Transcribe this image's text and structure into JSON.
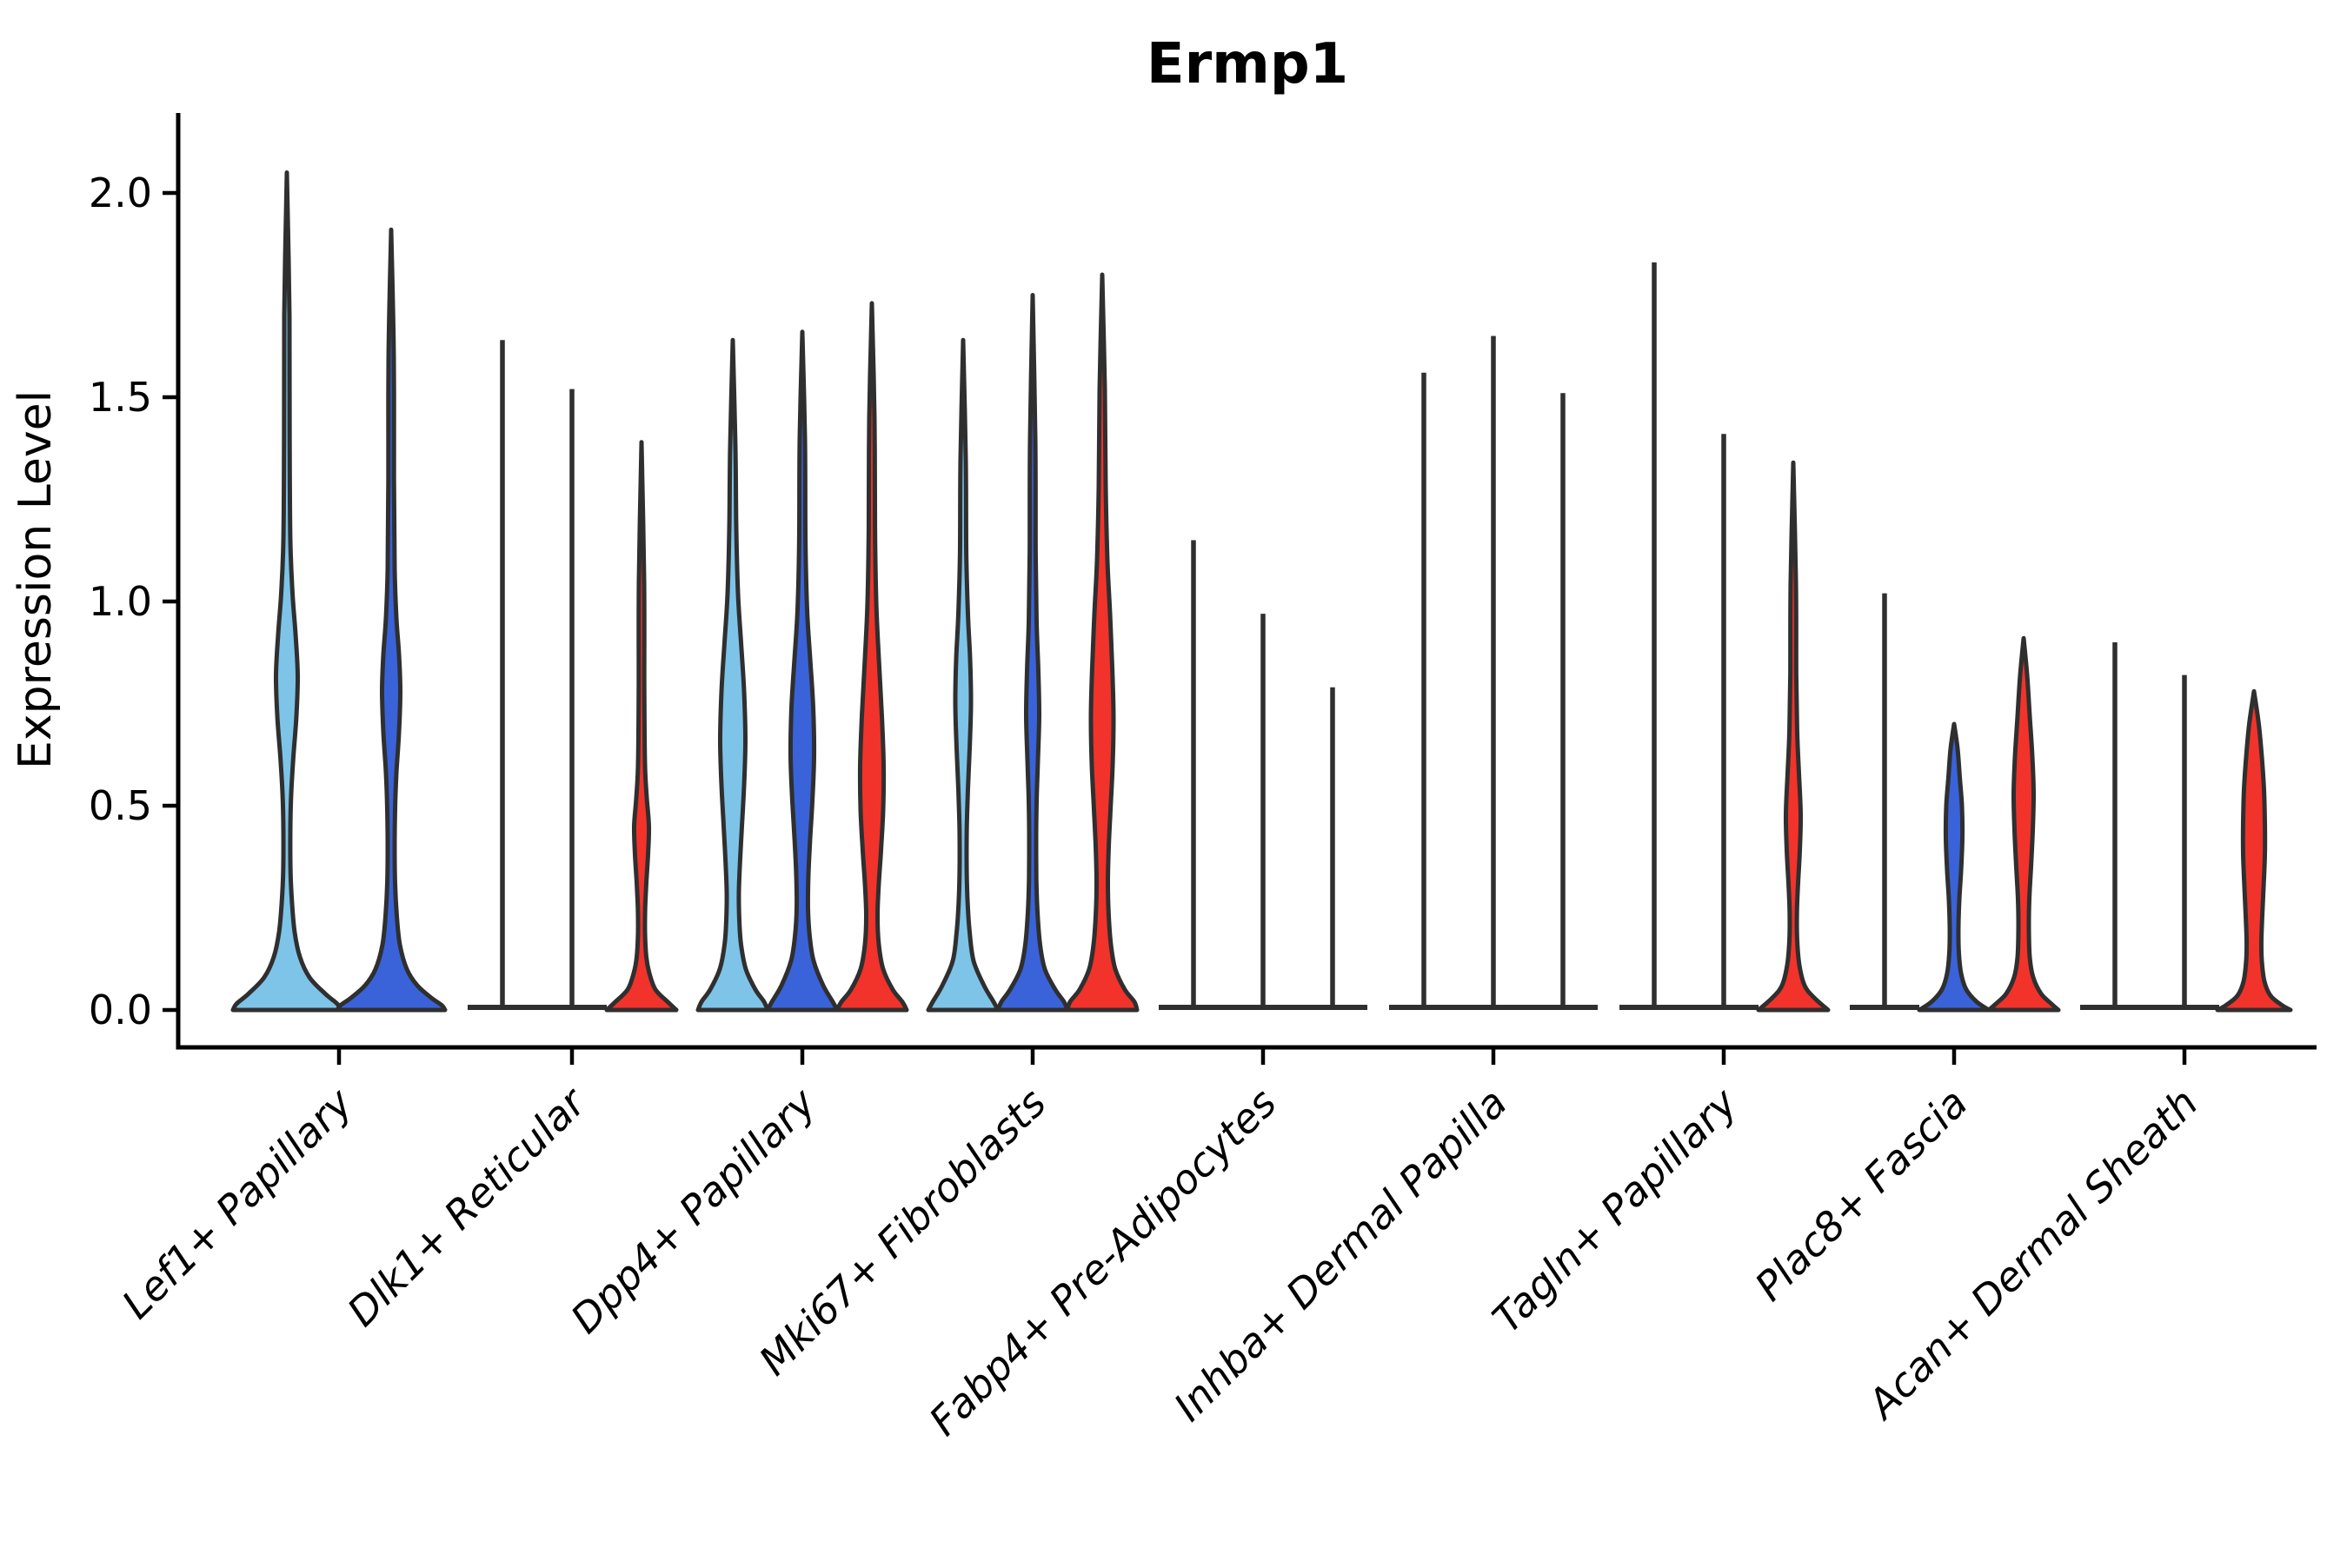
{
  "title": "Ermp1",
  "ylabel": "Expression Level",
  "chart_data": {
    "type": "violin",
    "title": "Ermp1",
    "xlabel": "",
    "ylabel": "Expression Level",
    "yticks": [
      0.0,
      0.5,
      1.0,
      1.5,
      2.0
    ],
    "ylim": [
      -0.09,
      2.19
    ],
    "grid": false,
    "legend": "none",
    "colors": {
      "light_blue": "#7EC4E8",
      "dark_blue": "#3A63D9",
      "red": "#F2332B",
      "outline": "#2F2F2F"
    },
    "groups": [
      {
        "label": "Lef1+ Papillary",
        "violins": [
          {
            "color": "light_blue",
            "kind": "body",
            "max": 2.05,
            "profile": [
              [
                2.05,
                2.5
              ],
              [
                1.7,
                3
              ],
              [
                1.4,
                3.2
              ],
              [
                1.15,
                4
              ],
              [
                1.02,
                6.5
              ],
              [
                0.92,
                10
              ],
              [
                0.82,
                12.5
              ],
              [
                0.72,
                11
              ],
              [
                0.62,
                7.5
              ],
              [
                0.53,
                5
              ],
              [
                0.44,
                4
              ],
              [
                0.34,
                4.2
              ],
              [
                0.26,
                6
              ],
              [
                0.19,
                9
              ],
              [
                0.13,
                15
              ],
              [
                0.08,
                26
              ],
              [
                0.04,
                44
              ],
              [
                0.015,
                58
              ],
              [
                0,
                62
              ]
            ]
          },
          {
            "color": "dark_blue",
            "kind": "body",
            "max": 1.91,
            "profile": [
              [
                1.91,
                2.5
              ],
              [
                1.6,
                3
              ],
              [
                1.3,
                3.2
              ],
              [
                1.08,
                4
              ],
              [
                0.96,
                6
              ],
              [
                0.87,
                9
              ],
              [
                0.78,
                10.5
              ],
              [
                0.68,
                9
              ],
              [
                0.58,
                6
              ],
              [
                0.49,
                4.5
              ],
              [
                0.4,
                4
              ],
              [
                0.31,
                4.5
              ],
              [
                0.23,
                6.5
              ],
              [
                0.16,
                10
              ],
              [
                0.1,
                18
              ],
              [
                0.06,
                30
              ],
              [
                0.03,
                46
              ],
              [
                0.012,
                58
              ],
              [
                0,
                62
              ]
            ]
          }
        ]
      },
      {
        "label": "Dlk1+ Reticular",
        "violins": [
          {
            "color": "light_blue",
            "kind": "stick",
            "max": 1.64
          },
          {
            "color": "dark_blue",
            "kind": "stick",
            "max": 1.52
          },
          {
            "color": "red",
            "kind": "body",
            "max": 1.39,
            "profile": [
              [
                1.39,
                2.5
              ],
              [
                1.05,
                3
              ],
              [
                0.78,
                3.2
              ],
              [
                0.6,
                4
              ],
              [
                0.52,
                6
              ],
              [
                0.45,
                8.5
              ],
              [
                0.38,
                7.5
              ],
              [
                0.31,
                5.5
              ],
              [
                0.25,
                4.2
              ],
              [
                0.19,
                4
              ],
              [
                0.13,
                5.5
              ],
              [
                0.09,
                9
              ],
              [
                0.05,
                16
              ],
              [
                0.02,
                30
              ],
              [
                0,
                40
              ]
            ]
          }
        ]
      },
      {
        "label": "Dpp4+ Papillary",
        "violins": [
          {
            "color": "light_blue",
            "kind": "body",
            "max": 1.64,
            "profile": [
              [
                1.64,
                2.5
              ],
              [
                1.38,
                3
              ],
              [
                1.18,
                4
              ],
              [
                1.02,
                6
              ],
              [
                0.9,
                9.5
              ],
              [
                0.78,
                13
              ],
              [
                0.66,
                14.5
              ],
              [
                0.55,
                13
              ],
              [
                0.45,
                10.5
              ],
              [
                0.37,
                8.5
              ],
              [
                0.29,
                7
              ],
              [
                0.22,
                7.5
              ],
              [
                0.16,
                9.5
              ],
              [
                0.1,
                15
              ],
              [
                0.05,
                26
              ],
              [
                0.02,
                36
              ],
              [
                0,
                40
              ]
            ]
          },
          {
            "color": "dark_blue",
            "kind": "body",
            "max": 1.66,
            "profile": [
              [
                1.66,
                2.5
              ],
              [
                1.4,
                3
              ],
              [
                1.15,
                3.6
              ],
              [
                0.98,
                5.5
              ],
              [
                0.86,
                9
              ],
              [
                0.74,
                12.5
              ],
              [
                0.62,
                13.5
              ],
              [
                0.51,
                11.5
              ],
              [
                0.42,
                9
              ],
              [
                0.33,
                7
              ],
              [
                0.25,
                6.5
              ],
              [
                0.18,
                8.5
              ],
              [
                0.12,
                13
              ],
              [
                0.06,
                24
              ],
              [
                0.02,
                35
              ],
              [
                0,
                40
              ]
            ]
          },
          {
            "color": "red",
            "kind": "body",
            "max": 1.73,
            "profile": [
              [
                1.73,
                2.5
              ],
              [
                1.45,
                3
              ],
              [
                1.18,
                3.6
              ],
              [
                1.0,
                5
              ],
              [
                0.86,
                8
              ],
              [
                0.72,
                11.5
              ],
              [
                0.6,
                13.5
              ],
              [
                0.49,
                13
              ],
              [
                0.39,
                10.5
              ],
              [
                0.31,
                8
              ],
              [
                0.23,
                6.5
              ],
              [
                0.16,
                8
              ],
              [
                0.1,
                13
              ],
              [
                0.05,
                24
              ],
              [
                0.02,
                35
              ],
              [
                0,
                40
              ]
            ]
          }
        ]
      },
      {
        "label": "Mki67+ Fibroblasts",
        "violins": [
          {
            "color": "light_blue",
            "kind": "body",
            "max": 1.64,
            "profile": [
              [
                1.64,
                2.5
              ],
              [
                1.35,
                3
              ],
              [
                1.12,
                3.6
              ],
              [
                0.97,
                5.5
              ],
              [
                0.86,
                8
              ],
              [
                0.75,
                9
              ],
              [
                0.64,
                7.5
              ],
              [
                0.54,
                5.5
              ],
              [
                0.45,
                4.2
              ],
              [
                0.36,
                4
              ],
              [
                0.27,
                5
              ],
              [
                0.19,
                7.5
              ],
              [
                0.12,
                12
              ],
              [
                0.06,
                24
              ],
              [
                0.02,
                35
              ],
              [
                0,
                40
              ]
            ]
          },
          {
            "color": "dark_blue",
            "kind": "body",
            "max": 1.75,
            "profile": [
              [
                1.75,
                2.5
              ],
              [
                1.4,
                3
              ],
              [
                1.12,
                3.4
              ],
              [
                0.95,
                4.5
              ],
              [
                0.83,
                6.5
              ],
              [
                0.72,
                7.5
              ],
              [
                0.61,
                6
              ],
              [
                0.51,
                4.5
              ],
              [
                0.42,
                4
              ],
              [
                0.32,
                4.2
              ],
              [
                0.24,
                5.5
              ],
              [
                0.16,
                8.5
              ],
              [
                0.1,
                14
              ],
              [
                0.05,
                26
              ],
              [
                0.02,
                36
              ],
              [
                0,
                40
              ]
            ]
          },
          {
            "color": "red",
            "kind": "body",
            "max": 1.8,
            "profile": [
              [
                1.8,
                2.5
              ],
              [
                1.52,
                3
              ],
              [
                1.28,
                4
              ],
              [
                1.1,
                6
              ],
              [
                0.97,
                9
              ],
              [
                0.84,
                11.5
              ],
              [
                0.72,
                13
              ],
              [
                0.6,
                12
              ],
              [
                0.49,
                9.5
              ],
              [
                0.4,
                7.5
              ],
              [
                0.31,
                6.5
              ],
              [
                0.23,
                7.5
              ],
              [
                0.16,
                10
              ],
              [
                0.1,
                15
              ],
              [
                0.05,
                26
              ],
              [
                0.02,
                37
              ],
              [
                0,
                40
              ]
            ]
          }
        ]
      },
      {
        "label": "Fabp4+ Pre-Adipocytes",
        "violins": [
          {
            "color": "light_blue",
            "kind": "stick",
            "max": 1.15
          },
          {
            "color": "dark_blue",
            "kind": "stick",
            "max": 0.97
          },
          {
            "color": "red",
            "kind": "stick",
            "max": 0.79
          }
        ]
      },
      {
        "label": "Inhba+ Dermal Papilla",
        "violins": [
          {
            "color": "light_blue",
            "kind": "stick",
            "max": 1.56
          },
          {
            "color": "dark_blue",
            "kind": "stick",
            "max": 1.65
          },
          {
            "color": "red",
            "kind": "stick",
            "max": 1.51
          }
        ]
      },
      {
        "label": "Tagln+ Papillary",
        "violins": [
          {
            "color": "light_blue",
            "kind": "stick",
            "max": 1.83
          },
          {
            "color": "dark_blue",
            "kind": "stick",
            "max": 1.41
          },
          {
            "color": "red",
            "kind": "body",
            "max": 1.34,
            "profile": [
              [
                1.34,
                2.5
              ],
              [
                1.05,
                3
              ],
              [
                0.82,
                3.4
              ],
              [
                0.68,
                4.5
              ],
              [
                0.58,
                6.5
              ],
              [
                0.48,
                8.5
              ],
              [
                0.39,
                7.5
              ],
              [
                0.31,
                5.5
              ],
              [
                0.24,
                4.2
              ],
              [
                0.17,
                4.5
              ],
              [
                0.11,
                7
              ],
              [
                0.06,
                13
              ],
              [
                0.03,
                24
              ],
              [
                0,
                40
              ]
            ]
          }
        ]
      },
      {
        "label": "Plac8+ Fascia",
        "violins": [
          {
            "color": "light_blue",
            "kind": "stick",
            "max": 1.02
          },
          {
            "color": "dark_blue",
            "kind": "body",
            "max": 0.7,
            "profile": [
              [
                0.7,
                2.5
              ],
              [
                0.64,
                4
              ],
              [
                0.57,
                6.5
              ],
              [
                0.5,
                9
              ],
              [
                0.42,
                9.5
              ],
              [
                0.34,
                8
              ],
              [
                0.27,
                6
              ],
              [
                0.2,
                5
              ],
              [
                0.14,
                5.5
              ],
              [
                0.09,
                8
              ],
              [
                0.05,
                14
              ],
              [
                0.02,
                26
              ],
              [
                0,
                40
              ]
            ]
          },
          {
            "color": "red",
            "kind": "body",
            "max": 0.91,
            "profile": [
              [
                0.91,
                2.5
              ],
              [
                0.82,
                4
              ],
              [
                0.72,
                7
              ],
              [
                0.62,
                10
              ],
              [
                0.53,
                11.5
              ],
              [
                0.44,
                10.5
              ],
              [
                0.35,
                8.5
              ],
              [
                0.27,
                6.5
              ],
              [
                0.2,
                6
              ],
              [
                0.13,
                7
              ],
              [
                0.08,
                11
              ],
              [
                0.04,
                20
              ],
              [
                0.015,
                32
              ],
              [
                0,
                40
              ]
            ]
          }
        ]
      },
      {
        "label": "Acan+ Dermal Sheath",
        "violins": [
          {
            "color": "light_blue",
            "kind": "stick",
            "max": 0.9
          },
          {
            "color": "dark_blue",
            "kind": "stick",
            "max": 0.82
          },
          {
            "color": "red",
            "kind": "body",
            "max": 0.78,
            "profile": [
              [
                0.78,
                3
              ],
              [
                0.7,
                5.5
              ],
              [
                0.62,
                9
              ],
              [
                0.54,
                11.5
              ],
              [
                0.46,
                12.5
              ],
              [
                0.38,
                12.5
              ],
              [
                0.3,
                11
              ],
              [
                0.23,
                9.5
              ],
              [
                0.17,
                8.5
              ],
              [
                0.12,
                9
              ],
              [
                0.07,
                12
              ],
              [
                0.035,
                19
              ],
              [
                0.012,
                32
              ],
              [
                0,
                42
              ]
            ]
          }
        ]
      }
    ]
  }
}
